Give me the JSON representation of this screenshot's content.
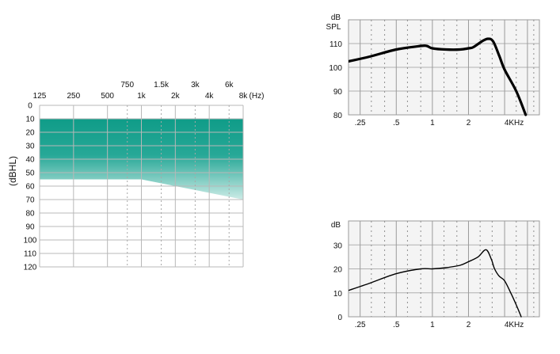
{
  "chart_data": [
    {
      "type": "area",
      "x_ticks_bottom": [
        "125",
        "250",
        "500",
        "1k",
        "2k",
        "4k",
        "8k"
      ],
      "x_ticks_top": [
        "750",
        "1.5k",
        "3k",
        "6k"
      ],
      "x_unit": "(Hz)",
      "ylabel": "(dBHL)",
      "y_ticks": [
        "0",
        "10",
        "20",
        "30",
        "40",
        "50",
        "60",
        "70",
        "80",
        "90",
        "100",
        "110",
        "120"
      ],
      "ylim": [
        0,
        120
      ],
      "y_inverted": true,
      "grid": true,
      "fill_color": "#1a9e8c",
      "band": {
        "x": [
          "125",
          "250",
          "500",
          "1k",
          "2k",
          "4k",
          "8k"
        ],
        "upper_dbhl": [
          10,
          10,
          10,
          10,
          10,
          10,
          10
        ],
        "lower_dbhl": [
          55,
          55,
          55,
          55,
          60,
          65,
          70
        ]
      }
    },
    {
      "type": "line",
      "ylabel": "dB SPL",
      "ylabel_lines": [
        "dB",
        "SPL"
      ],
      "x_ticks": [
        ".25",
        ".5",
        "1",
        "2",
        "4KHz"
      ],
      "x_tick_values": [
        0.25,
        0.5,
        1,
        2,
        4
      ],
      "y_ticks": [
        "80",
        "90",
        "100",
        "110"
      ],
      "ylim": [
        80,
        120
      ],
      "grid": true,
      "x": [
        0.2,
        0.3,
        0.5,
        0.8,
        0.9,
        1.0,
        1.3,
        1.7,
        2.0,
        2.2,
        2.6,
        2.9,
        3.2,
        3.6,
        4.0,
        5.0,
        6.0
      ],
      "y": [
        102.5,
        104.5,
        107.5,
        109,
        109,
        108,
        107.5,
        107.5,
        108,
        108.5,
        111,
        112,
        111,
        105,
        99,
        90,
        80
      ],
      "line_color": "#000000"
    },
    {
      "type": "line",
      "ylabel": "dB",
      "x_ticks": [
        ".25",
        ".5",
        "1",
        "2",
        "4KHz"
      ],
      "x_tick_values": [
        0.25,
        0.5,
        1,
        2,
        4
      ],
      "y_ticks": [
        "0",
        "10",
        "20",
        "30"
      ],
      "ylim": [
        0,
        40
      ],
      "grid": true,
      "x": [
        0.2,
        0.3,
        0.5,
        0.8,
        1.0,
        1.3,
        1.7,
        2.0,
        2.4,
        2.8,
        3.1,
        3.3,
        3.6,
        4.0,
        4.5,
        5.0,
        5.5
      ],
      "y": [
        11,
        14,
        18,
        20,
        20,
        20.5,
        21.5,
        23,
        25,
        28,
        24,
        20,
        17,
        15,
        10,
        5,
        0
      ],
      "line_color": "#000000"
    }
  ]
}
